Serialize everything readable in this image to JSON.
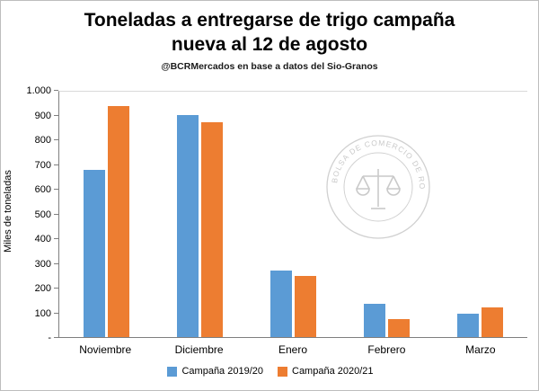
{
  "title": {
    "line1": "Toneladas a entregarse de trigo campaña",
    "line2": "nueva al 12 de agosto"
  },
  "subtitle": "@BCRMercados  en base a datos del Sio-Granos",
  "watermark": {
    "text": "BOLSA DE COMERCIO DE ROSARIO",
    "icon": "scales-of-justice-icon"
  },
  "colors": {
    "series1": "#5B9BD5",
    "series2": "#ED7D31",
    "watermark": "#bdbdbd"
  },
  "chart_data": {
    "type": "bar",
    "title": "Toneladas a entregarse de trigo campaña nueva al 12 de agosto",
    "subtitle": "@BCRMercados en base a datos del Sio-Granos",
    "categories": [
      "Noviembre",
      "Diciembre",
      "Enero",
      "Febrero",
      "Marzo"
    ],
    "series": [
      {
        "name": "Campaña 2019/20",
        "color": "#5B9BD5",
        "values": [
          680,
          905,
          270,
          135,
          95
        ]
      },
      {
        "name": "Campaña 2020/21",
        "color": "#ED7D31",
        "values": [
          940,
          875,
          250,
          75,
          120
        ]
      }
    ],
    "xlabel": "",
    "ylabel": "Miles de toneladas",
    "ylim": [
      0,
      1000
    ],
    "ytick_step": 100,
    "ytick_labels_bottom_to_top": [
      "-",
      "100",
      "200",
      "300",
      "400",
      "500",
      "600",
      "700",
      "800",
      "900",
      "1.000"
    ],
    "grid": false,
    "legend_position": "bottom"
  }
}
